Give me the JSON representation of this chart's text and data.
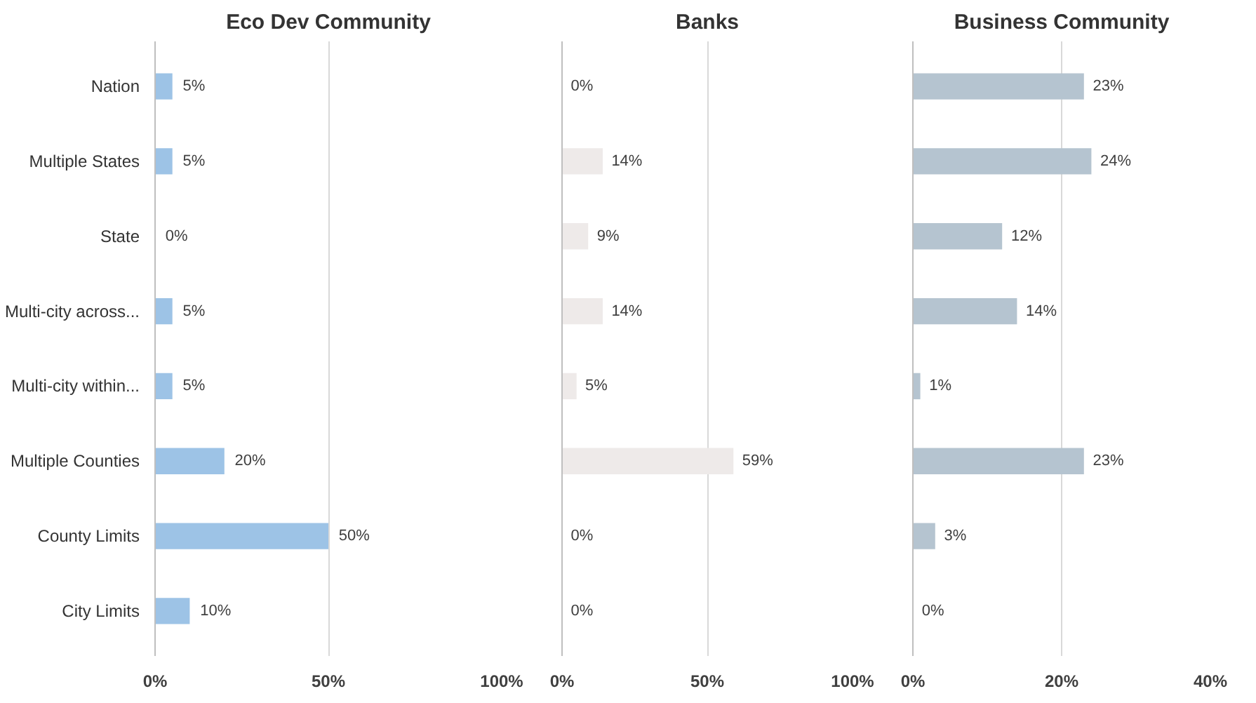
{
  "chart_data": [
    {
      "type": "bar",
      "orientation": "horizontal",
      "title": "Eco Dev Community",
      "categories": [
        "Nation",
        "Multiple States",
        "State",
        "Multi-city across...",
        "Multi-city within...",
        "Multiple Counties",
        "County Limits",
        "City Limits"
      ],
      "values": [
        5,
        5,
        0,
        5,
        5,
        20,
        50,
        10
      ],
      "color": "#9dc3e6",
      "value_labels": [
        "5%",
        "5%",
        "0%",
        "5%",
        "5%",
        "20%",
        "50%",
        "10%"
      ],
      "xlim": [
        0,
        100
      ],
      "xticks": [
        {
          "value": 0,
          "label": "0%"
        },
        {
          "value": 50,
          "label": "50%"
        },
        {
          "value": 100,
          "label": "100%"
        }
      ],
      "grid": "x"
    },
    {
      "type": "bar",
      "orientation": "horizontal",
      "title": "Banks",
      "categories": [
        null,
        null,
        null,
        null,
        null,
        null,
        null,
        null
      ],
      "values": [
        0,
        14,
        9,
        14,
        5,
        59,
        0,
        0
      ],
      "color": "#eeeae9",
      "value_labels": [
        "0%",
        "14%",
        "9%",
        "14%",
        "5%",
        "59%",
        "0%",
        "0%"
      ],
      "xlim": [
        0,
        100
      ],
      "xticks": [
        {
          "value": 0,
          "label": "0%"
        },
        {
          "value": 50,
          "label": "50%"
        },
        {
          "value": 100,
          "label": "100%"
        }
      ],
      "grid": "x",
      "tick_labels": "x"
    },
    {
      "type": "bar",
      "orientation": "horizontal",
      "title": "Business Community",
      "categories": [
        null,
        null,
        null,
        null,
        null,
        null,
        null,
        null
      ],
      "values": [
        23,
        24,
        12,
        14,
        1,
        23,
        3,
        0
      ],
      "color": "#b5c4d0",
      "value_labels": [
        "23%",
        "24%",
        "12%",
        "14%",
        "1%",
        "23%",
        "3%",
        "0%"
      ],
      "xlim": [
        0,
        40
      ],
      "xticks": [
        {
          "value": 0,
          "label": "0%"
        },
        {
          "value": 20,
          "label": "20%"
        },
        {
          "value": 40,
          "label": "40%"
        }
      ],
      "grid": "x",
      "tick_labels": "x"
    }
  ]
}
